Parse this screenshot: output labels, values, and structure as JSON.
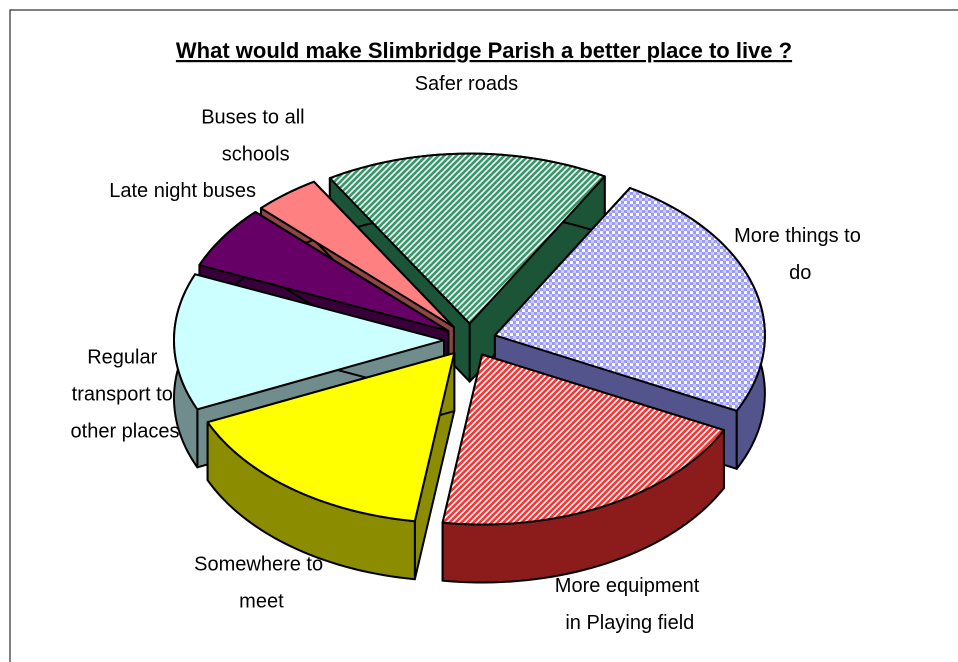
{
  "chart_data": {
    "type": "pie3d",
    "title": "What would make Slimbridge Parish a better place to live ?",
    "categories": [
      "More things to do",
      "More equipment in Playing field",
      "Somewhere to meet",
      "Regular transport to other places",
      "Late night buses",
      "Buses to all schools",
      "Safer roads"
    ],
    "values": [
      24,
      20,
      16,
      13,
      6,
      4,
      17
    ],
    "colors": [
      "#9999ff",
      "#ff3333",
      "#ffff00",
      "#ccffff",
      "#660066",
      "#ff8080",
      "#339966"
    ],
    "patterns": [
      "check",
      "hatch",
      "solid",
      "solid",
      "solid",
      "solid",
      "hatch"
    ]
  }
}
